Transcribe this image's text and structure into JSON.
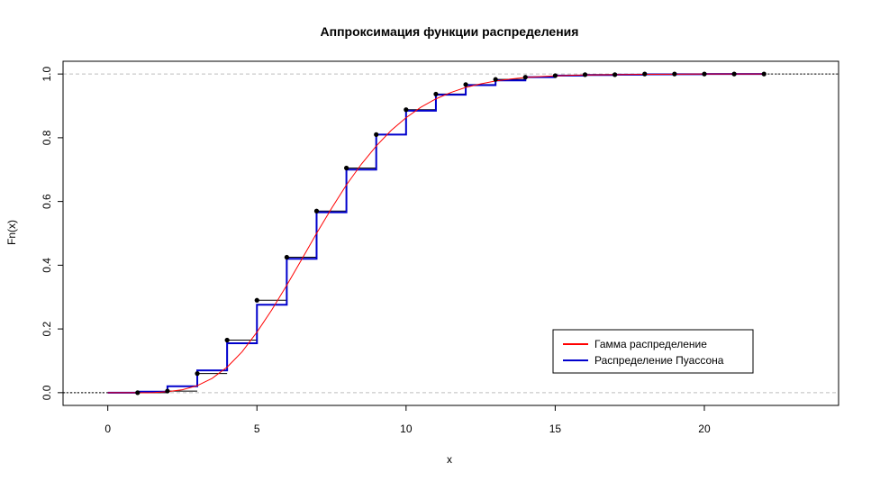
{
  "chart_data": {
    "type": "line",
    "title": "Аппроксимация функции распределения",
    "xlabel": "x",
    "ylabel": "Fn(x)",
    "xlim": [
      -1.5,
      24.5
    ],
    "ylim": [
      -0.04,
      1.04
    ],
    "x_ticks": [
      0,
      5,
      10,
      15,
      20
    ],
    "y_ticks": [
      0.0,
      0.2,
      0.4,
      0.6,
      0.8,
      1.0
    ],
    "x_tick_labels": [
      "0",
      "5",
      "10",
      "15",
      "20"
    ],
    "y_tick_labels": [
      "0.0",
      "0.2",
      "0.4",
      "0.6",
      "0.8",
      "1.0"
    ],
    "grid": "dashed horizontal lines at 0 and 1",
    "legend_position": "bottom-right",
    "series": [
      {
        "name": "",
        "kind": "empirical-step",
        "color": "#000000",
        "x": [
          1,
          2,
          3,
          4,
          5,
          6,
          7,
          8,
          9,
          10,
          11,
          12,
          13,
          14,
          15,
          16,
          17,
          18,
          19,
          20,
          21,
          22
        ],
        "y": [
          0.0,
          0.005,
          0.06,
          0.165,
          0.29,
          0.425,
          0.57,
          0.705,
          0.81,
          0.888,
          0.937,
          0.967,
          0.983,
          0.99,
          0.995,
          0.998,
          0.998,
          1.0,
          1.0,
          1.0,
          1.0,
          1.0
        ]
      },
      {
        "name": "Гамма распределение",
        "kind": "smooth-line",
        "color": "#ff0000",
        "x": [
          0,
          0.5,
          1,
          1.5,
          2,
          2.5,
          3,
          3.5,
          4,
          4.5,
          5,
          5.5,
          6,
          6.5,
          7,
          7.5,
          8,
          8.5,
          9,
          9.5,
          10,
          10.5,
          11,
          11.5,
          12,
          12.5,
          13,
          13.5,
          14,
          14.5,
          15,
          15.5,
          16,
          17,
          18,
          19,
          20,
          21,
          22
        ],
        "y": [
          0.0,
          0.0,
          0.0,
          0.0,
          0.003,
          0.009,
          0.022,
          0.045,
          0.08,
          0.128,
          0.19,
          0.26,
          0.337,
          0.418,
          0.5,
          0.578,
          0.652,
          0.717,
          0.774,
          0.823,
          0.863,
          0.896,
          0.922,
          0.942,
          0.958,
          0.969,
          0.978,
          0.984,
          0.989,
          0.992,
          0.994,
          0.996,
          0.997,
          0.998,
          0.999,
          0.9995,
          1.0,
          1.0,
          1.0
        ]
      },
      {
        "name": "Распределение Пуассона",
        "kind": "step",
        "color": "#0000cd",
        "x": [
          0,
          1,
          2,
          3,
          4,
          5,
          6,
          7,
          8,
          9,
          10,
          11,
          12,
          13,
          14,
          15,
          16,
          17,
          18,
          19,
          20,
          21,
          22
        ],
        "y": [
          0.0,
          0.003,
          0.02,
          0.07,
          0.155,
          0.276,
          0.42,
          0.566,
          0.7,
          0.81,
          0.885,
          0.935,
          0.965,
          0.98,
          0.99,
          0.995,
          0.997,
          0.998,
          0.999,
          0.9995,
          1.0,
          1.0,
          1.0
        ]
      }
    ]
  }
}
